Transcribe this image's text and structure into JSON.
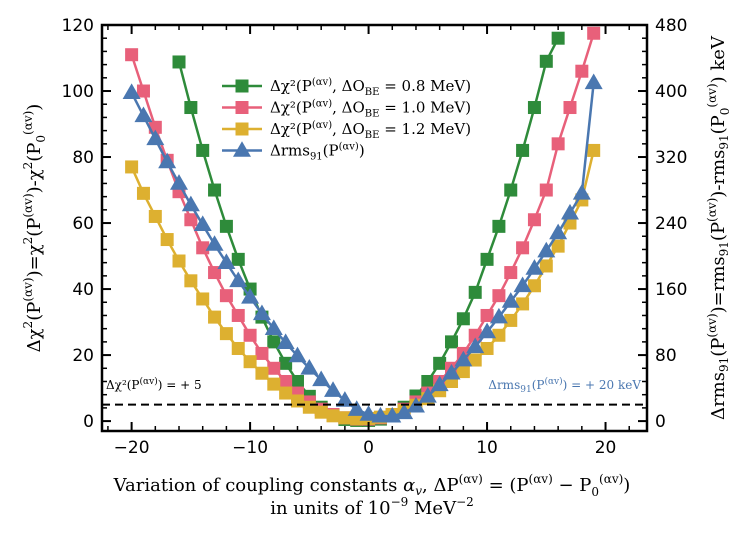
{
  "chart_data": {
    "type": "line",
    "x": [
      -20,
      -19,
      -18,
      -17,
      -16,
      -15,
      -14,
      -13,
      -12,
      -11,
      -10,
      -9,
      -8,
      -7,
      -6,
      -5,
      -4,
      -3,
      -2,
      -1,
      0,
      1,
      2,
      3,
      4,
      5,
      6,
      7,
      8,
      9,
      10,
      11,
      12,
      13,
      14,
      15,
      16,
      17,
      18,
      19
    ],
    "xlabel_line1": "Variation of coupling constants αv, ΔP(αv) = (P(αv) − P0(αv))",
    "xlabel_line2": "in units of 10⁻⁹ MeV⁻²",
    "ylabel_left": "Δχ²(P(αv))=χ²(P(αv))-χ²(P0(αv))",
    "ylabel_right": "Δrms91(P(αv))=rms91(P(αv))-rms91(P0(αv)) keV",
    "xlim": [
      -22.5,
      23.5
    ],
    "ylim_left": [
      -3,
      120
    ],
    "ylim_right": [
      -12,
      480
    ],
    "x_ticks": [
      -20,
      -10,
      0,
      10,
      20
    ],
    "y_ticks_left": [
      0,
      20,
      40,
      60,
      80,
      100,
      120
    ],
    "y_ticks_right": [
      0,
      80,
      160,
      240,
      320,
      400,
      480
    ],
    "series": [
      {
        "name": "Δχ²(P(αv), ΔO_BE = 0.8 MeV)",
        "color": "#2e8b3a",
        "marker": "square",
        "axis": "left",
        "values": [
          null,
          null,
          null,
          null,
          108.8,
          95,
          82,
          70,
          59,
          49,
          40,
          31.5,
          24,
          17.5,
          12,
          7.5,
          4.2,
          1.8,
          0.5,
          0.2,
          0.2,
          0.6,
          2,
          4.2,
          7.6,
          12,
          17.5,
          24,
          31,
          39,
          49,
          59,
          70,
          82,
          95,
          109,
          116,
          null,
          null,
          null
        ]
      },
      {
        "name": "Δχ²(P(αv), ΔO_BE = 1.0 MeV)",
        "color": "#e8607a",
        "marker": "square",
        "axis": "left",
        "values": [
          111,
          100,
          89,
          79,
          69.5,
          61,
          52.5,
          45,
          38,
          32,
          26,
          20.5,
          16,
          12,
          8.5,
          5.8,
          3.6,
          2,
          1,
          0.6,
          0.6,
          1,
          2,
          3.6,
          5.8,
          8.5,
          12,
          16,
          20.5,
          26,
          32,
          38,
          45,
          52.5,
          61,
          70,
          84,
          95,
          106,
          117.5
        ]
      },
      {
        "name": "Δχ²(P(αv), ΔO_BE = 1.2 MeV)",
        "color": "#ddb030",
        "marker": "square",
        "axis": "left",
        "values": [
          77,
          69,
          62,
          55,
          48.5,
          42.5,
          37,
          31.5,
          26.5,
          22,
          18,
          14.5,
          11.2,
          8.5,
          6.1,
          4.2,
          2.7,
          1.6,
          1,
          0.7,
          0.8,
          1.2,
          2,
          3.2,
          4.8,
          6.8,
          9.2,
          12,
          15,
          18.5,
          22,
          26,
          30.5,
          35.5,
          41,
          47,
          53,
          60,
          67,
          82
        ]
      },
      {
        "name": "Δrms91(P(αv))",
        "color": "#4a77b0",
        "marker": "triangle",
        "axis": "right",
        "values": [
          398,
          370,
          342,
          314,
          288,
          262,
          238,
          214,
          192,
          170,
          150,
          130,
          112,
          95,
          79,
          64,
          50,
          37,
          25,
          14,
          8,
          6,
          6,
          10,
          18,
          30,
          44,
          58,
          74,
          90,
          108,
          126,
          145,
          164,
          185,
          206,
          228,
          252,
          276,
          410
        ]
      }
    ],
    "legend_labels": [
      {
        "main": "Δχ²(P",
        "sup": "(αv)",
        "rest": ", ΔO",
        "sub": "BE",
        "tail": " = 0.8 MeV)"
      },
      {
        "main": "Δχ²(P",
        "sup": "(αv)",
        "rest": ", ΔO",
        "sub": "BE",
        "tail": " = 1.0 MeV)"
      },
      {
        "main": "Δχ²(P",
        "sup": "(αv)",
        "rest": ", ΔO",
        "sub": "BE",
        "tail": " = 1.2 MeV)"
      },
      {
        "main": "Δrms",
        "sub": "91",
        "rest": "(P",
        "sup": "(αv)",
        "tail": ")"
      }
    ],
    "legend_placement": "upper-center",
    "threshold_line": {
      "y_left": 5,
      "style": "dashed"
    },
    "annotation_left": "Δχ²(P(αv)) = + 5",
    "annotation_right": "Δrms91(P(αv)) = + 20 keV"
  }
}
